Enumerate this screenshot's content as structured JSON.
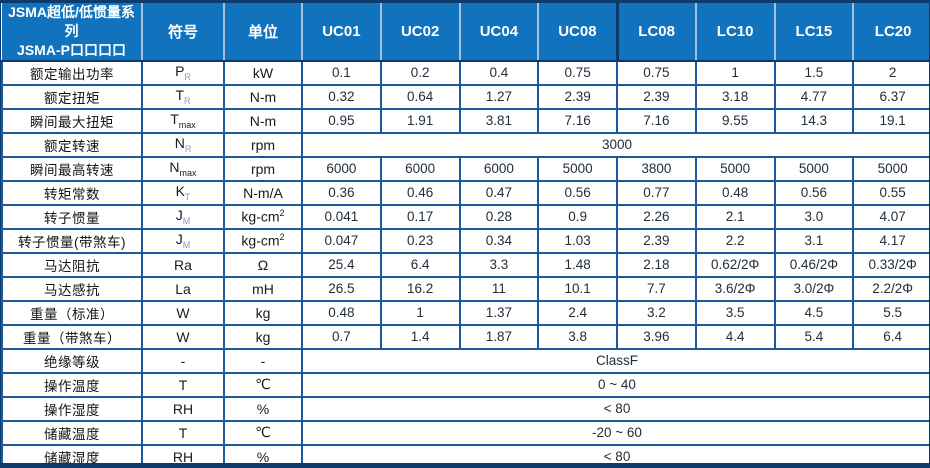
{
  "table": {
    "header": {
      "title_line1": "JSMA超低/低惯量系列",
      "title_line2": "JSMA-P口口口口",
      "symbol_label": "符号",
      "unit_label": "单位",
      "models": [
        "UC01",
        "UC02",
        "UC04",
        "UC08",
        "LC08",
        "LC10",
        "LC15",
        "LC20"
      ],
      "group_boundary_model": "LC08"
    },
    "rows": [
      {
        "label": "额定输出功率",
        "symbol": "P_R",
        "unit": "kW",
        "values": [
          "0.1",
          "0.2",
          "0.4",
          "0.75",
          "0.75",
          "1",
          "1.5",
          "2"
        ]
      },
      {
        "label": "额定扭矩",
        "symbol": "T_R",
        "unit": "N-m",
        "values": [
          "0.32",
          "0.64",
          "1.27",
          "2.39",
          "2.39",
          "3.18",
          "4.77",
          "6.37"
        ]
      },
      {
        "label": "瞬间最大扭矩",
        "symbol": "T_max",
        "unit": "N-m",
        "values": [
          "0.95",
          "1.91",
          "3.81",
          "7.16",
          "7.16",
          "9.55",
          "14.3",
          "19.1"
        ]
      },
      {
        "label": "额定转速",
        "symbol": "N_R",
        "unit": "rpm",
        "span_value": "3000"
      },
      {
        "label": "瞬间最高转速",
        "symbol": "N_max",
        "unit": "rpm",
        "values": [
          "6000",
          "6000",
          "6000",
          "5000",
          "3800",
          "5000",
          "5000",
          "5000"
        ]
      },
      {
        "label": "转矩常数",
        "symbol": "K_T",
        "unit": "N-m/A",
        "values": [
          "0.36",
          "0.46",
          "0.47",
          "0.56",
          "0.77",
          "0.48",
          "0.56",
          "0.55"
        ]
      },
      {
        "label": "转子惯量",
        "symbol": "J_M",
        "unit": "kg-cm^2",
        "values": [
          "0.041",
          "0.17",
          "0.28",
          "0.9",
          "2.26",
          "2.1",
          "3.0",
          "4.07"
        ]
      },
      {
        "label": "转子惯量(带煞车)",
        "symbol": "J_M",
        "unit": "kg-cm^2",
        "values": [
          "0.047",
          "0.23",
          "0.34",
          "1.03",
          "2.39",
          "2.2",
          "3.1",
          "4.17"
        ]
      },
      {
        "label": "马达阻抗",
        "symbol": "Ra",
        "unit": "Ω",
        "values": [
          "25.4",
          "6.4",
          "3.3",
          "1.48",
          "2.18",
          "0.62/2Φ",
          "0.46/2Φ",
          "0.33/2Φ"
        ]
      },
      {
        "label": "马达感抗",
        "symbol": "La",
        "unit": "mH",
        "values": [
          "26.5",
          "16.2",
          "11",
          "10.1",
          "7.7",
          "3.6/2Φ",
          "3.0/2Φ",
          "2.2/2Φ"
        ]
      },
      {
        "label": "重量（标准）",
        "symbol": "W",
        "unit": "kg",
        "values": [
          "0.48",
          "1",
          "1.37",
          "2.4",
          "3.2",
          "3.5",
          "4.5",
          "5.5"
        ]
      },
      {
        "label": "重量（带煞车）",
        "symbol": "W",
        "unit": "kg",
        "values": [
          "0.7",
          "1.4",
          "1.87",
          "3.8",
          "3.96",
          "4.4",
          "5.4",
          "6.4"
        ]
      },
      {
        "label": "绝缘等级",
        "symbol": "-",
        "unit": "-",
        "span_value": "ClassF"
      },
      {
        "label": "操作温度",
        "symbol": "T",
        "unit": "℃",
        "span_value": "0 ~ 40"
      },
      {
        "label": "操作湿度",
        "symbol": "RH",
        "unit": "%",
        "span_value": "< 80"
      },
      {
        "label": "储藏温度",
        "symbol": "T",
        "unit": "℃",
        "span_value": "-20 ~ 60"
      },
      {
        "label": "储藏湿度",
        "symbol": "RH",
        "unit": "%",
        "span_value": "< 80"
      }
    ],
    "colors": {
      "header_bg": "#1173BE",
      "header_text": "#FFFFFF",
      "header_divider": "#A8C0DA",
      "grid_border": "#1A5A9E",
      "outer_border": "#0D3A6B",
      "label_text": "#141414",
      "value_text": "#222E3B",
      "subscript_accent": "#7E9FC6"
    }
  }
}
